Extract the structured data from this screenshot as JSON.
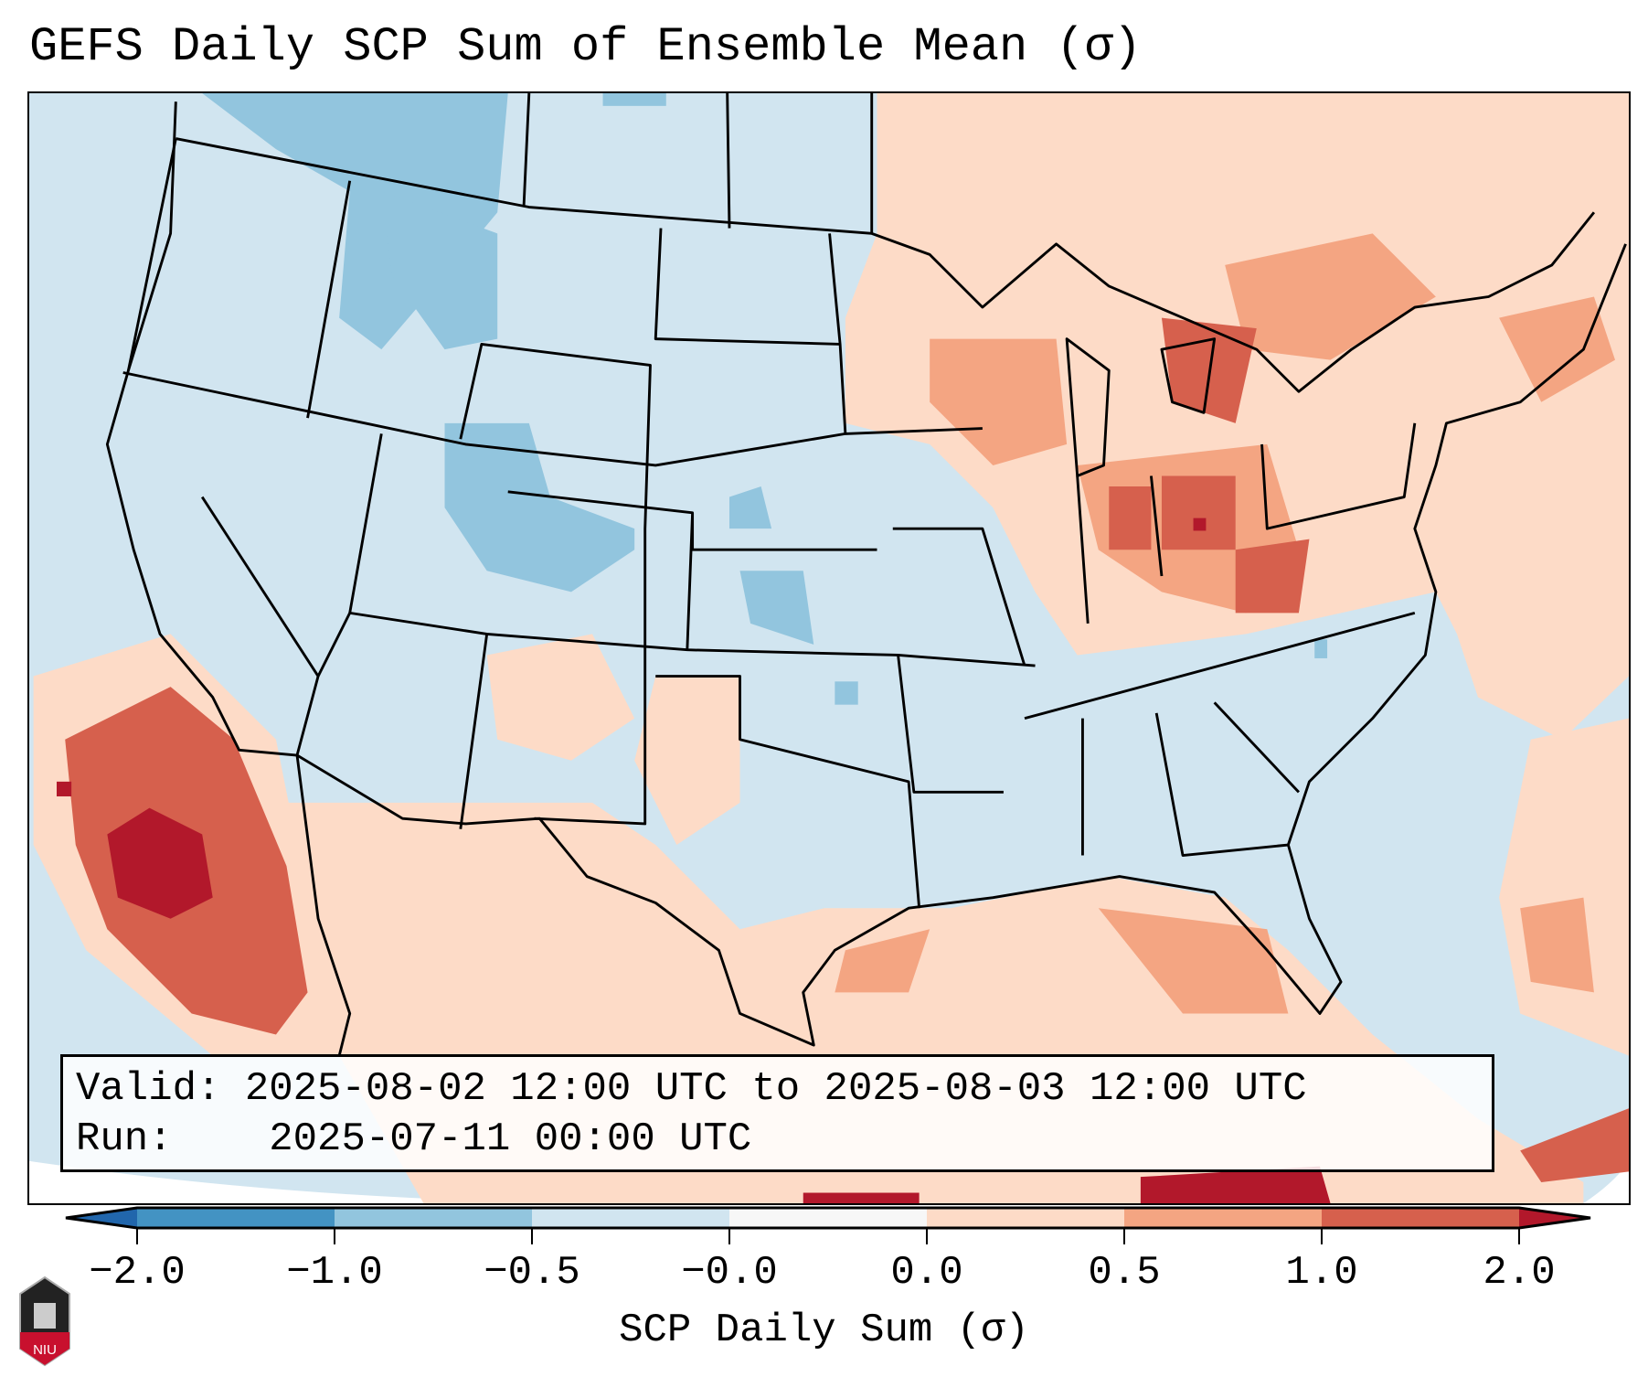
{
  "title": "GEFS Daily SCP Sum of Ensemble Mean (σ)",
  "info": {
    "valid_label": "Valid:",
    "valid_text": "2025-08-02 12:00 UTC to 2025-08-03 12:00 UTC",
    "run_label": "Run:",
    "run_text": "2025-07-11 00:00 UTC"
  },
  "colorbar": {
    "label": "SCP Daily Sum (σ)",
    "ticks": [
      "−2.0",
      "−1.0",
      "−0.5",
      "−0.0",
      "0.0",
      "0.5",
      "1.0",
      "2.0"
    ],
    "colors": [
      "#2166ac",
      "#4393c3",
      "#92c5de",
      "#d1e5f0",
      "#f7f7f7",
      "#fddbc7",
      "#f4a582",
      "#d6604d",
      "#b2182b"
    ]
  },
  "logo": {
    "text": "NIU"
  }
}
